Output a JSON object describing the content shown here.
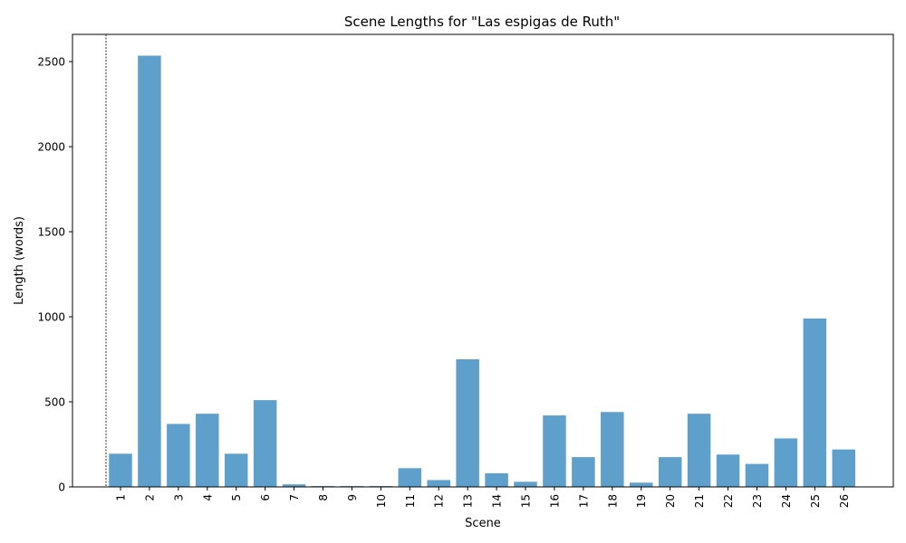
{
  "chart_data": {
    "type": "bar",
    "title": "Scene Lengths for \"Las espigas de Ruth\"",
    "xlabel": "Scene",
    "ylabel": "Length (words)",
    "categories": [
      "1",
      "2",
      "3",
      "4",
      "5",
      "6",
      "7",
      "8",
      "9",
      "10",
      "11",
      "12",
      "13",
      "14",
      "15",
      "16",
      "17",
      "18",
      "19",
      "20",
      "21",
      "22",
      "23",
      "24",
      "25",
      "26"
    ],
    "values": [
      195,
      2535,
      370,
      430,
      195,
      510,
      15,
      5,
      5,
      5,
      110,
      40,
      750,
      80,
      30,
      420,
      175,
      440,
      25,
      175,
      430,
      190,
      135,
      285,
      990,
      220
    ],
    "ylim": [
      0,
      2660
    ],
    "yticks": [
      0,
      500,
      1000,
      1500,
      2000,
      2500
    ],
    "bar_color": "#5f9fcc",
    "grid": false,
    "reference_line": "dashed vertical line at left of scene 1"
  }
}
